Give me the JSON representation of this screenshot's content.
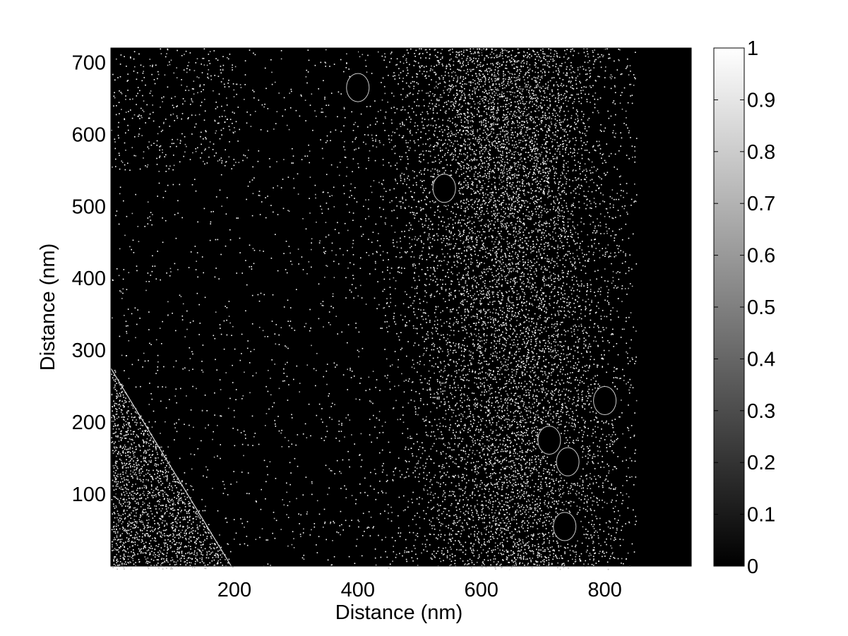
{
  "chart_data": {
    "type": "heatmap",
    "title": "",
    "xlabel": "Distance (nm)",
    "ylabel": "Distance (nm)",
    "xlim": [
      0,
      940
    ],
    "ylim": [
      0,
      720
    ],
    "x_ticks": [
      200,
      400,
      600,
      800
    ],
    "y_ticks": [
      100,
      200,
      300,
      400,
      500,
      600,
      700
    ],
    "colorbar": {
      "colormap": "gray",
      "range": [
        0,
        1
      ],
      "ticks": [
        "0",
        "0.1",
        "0.2",
        "0.3",
        "0.4",
        "0.5",
        "0.6",
        "0.7",
        "0.8",
        "0.9",
        "1"
      ]
    },
    "regions": [
      {
        "description": "bright wedge, lower-left corner",
        "density": 0.55,
        "polygon": [
          [
            0,
            275
          ],
          [
            195,
            0
          ],
          [
            0,
            0
          ]
        ]
      },
      {
        "description": "bright vertical band",
        "center_x": 650,
        "density": 0.45
      },
      {
        "description": "sparse scatter, left/center",
        "density": 0.04
      },
      {
        "description": "uniform dark region right of x=845",
        "density": 0.0
      }
    ],
    "dark_blobs": [
      {
        "x": 710,
        "y": 175
      },
      {
        "x": 800,
        "y": 230
      },
      {
        "x": 740,
        "y": 145
      },
      {
        "x": 735,
        "y": 55
      },
      {
        "x": 540,
        "y": 525
      },
      {
        "x": 400,
        "y": 665
      }
    ],
    "grid": false
  }
}
